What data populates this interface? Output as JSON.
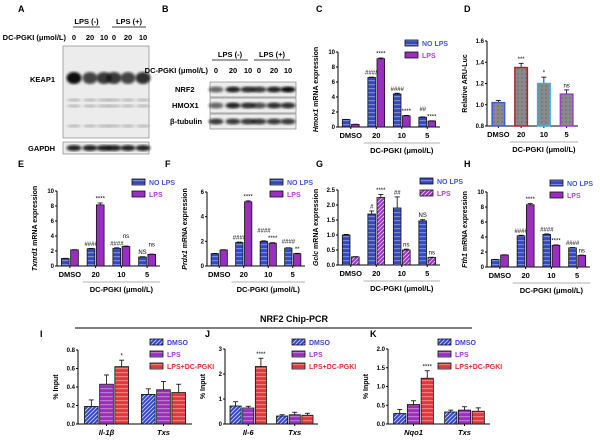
{
  "figure_title": "NRF2 Chip-PCR",
  "blots": [
    {
      "panel": "A",
      "groups": [
        "LPS (-)",
        "LPS (+)"
      ],
      "dose_label": "DC-PGKI (μmol/L)",
      "lanes": [
        "0",
        "20",
        "10",
        "0",
        "20",
        "10"
      ],
      "bands": [
        "KEAP1",
        "GAPDH"
      ]
    },
    {
      "panel": "B",
      "groups": [
        "LPS (-)",
        "LPS (+)"
      ],
      "dose_label": "DC-PGKI (μmol/L)",
      "lanes": [
        "0",
        "20",
        "10",
        "0",
        "20",
        "10"
      ],
      "bands": [
        "NRF2",
        "HMOX1",
        "β-tubulin"
      ]
    }
  ],
  "chart_data": [
    {
      "panel": "C",
      "type": "bar",
      "ylabel_gene": "Hmox1",
      "ylabel_rest": " mRNA expression",
      "ylim": [
        0,
        10
      ],
      "yticks": [
        "0",
        "2",
        "4",
        "6",
        "8",
        "10"
      ],
      "categories": [
        "DMSO",
        "20",
        "10",
        "5"
      ],
      "xlabel": "DC-PGKI (μmol/L)",
      "series": [
        {
          "name": "NO LPS",
          "color": "#3347c8",
          "legend_color": "#4055e0",
          "fill_style": "horizontal-stripes",
          "values": [
            1.0,
            6.6,
            4.4,
            1.3
          ],
          "errors": [
            0.02,
            0.05,
            0.1,
            0.05
          ],
          "annotations": [
            "",
            "####",
            "####",
            "##"
          ]
        },
        {
          "name": "LPS",
          "color": "#9a2fbf",
          "legend_color": "#b23ad4",
          "fill_style": "solid",
          "values": [
            0.35,
            9.1,
            1.5,
            0.8
          ],
          "errors": [
            0.02,
            0.1,
            0.05,
            0.03
          ],
          "annotations": [
            "",
            "****",
            "****",
            "****"
          ]
        }
      ]
    },
    {
      "panel": "D",
      "type": "bar",
      "ylabel_gene": "",
      "ylabel_rest": "Relative ARU-Luc",
      "ylim": [
        0.8,
        1.6
      ],
      "yticks": [
        "0.8",
        "1.0",
        "1.2",
        "1.4",
        "1.6"
      ],
      "categories": [
        "DMSO",
        "20",
        "10",
        "5"
      ],
      "xlabel": "DC-PGKI (μmol/L)",
      "series": [
        {
          "color": "#8a8a8a",
          "edge_colors": [
            "#3a5ae0",
            "#b0222a",
            "#35aee8",
            "#9b3fd0"
          ],
          "fill_style": "dotted-gray",
          "values": [
            1.02,
            1.35,
            1.2,
            1.1
          ],
          "errors": [
            0.02,
            0.04,
            0.06,
            0.04
          ],
          "annotations": [
            "",
            "***",
            "*",
            "ns"
          ]
        }
      ]
    },
    {
      "panel": "E",
      "type": "bar",
      "ylabel_gene": "Txnrd1",
      "ylabel_rest": " mRNA expression",
      "ylim": [
        0,
        10
      ],
      "yticks": [
        "0",
        "2",
        "4",
        "6",
        "8",
        "10"
      ],
      "categories": [
        "DMSO",
        "20",
        "10",
        "5"
      ],
      "xlabel": "DC-PGKI (μmol/L)",
      "series": [
        {
          "name": "NO LPS",
          "color": "#3347c8",
          "legend_color": "#4055e0",
          "fill_style": "horizontal-stripes",
          "values": [
            1.0,
            2.3,
            2.35,
            1.2
          ],
          "errors": [
            0.03,
            0.05,
            0.08,
            0.04
          ],
          "annotations": [
            "",
            "####",
            "####",
            "NS"
          ]
        },
        {
          "name": "LPS",
          "color": "#9a2fbf",
          "legend_color": "#b23ad4",
          "fill_style": "solid",
          "values": [
            2.15,
            8.15,
            2.6,
            1.55
          ],
          "errors": [
            0.03,
            0.25,
            0.06,
            0.04
          ],
          "annotations": [
            "",
            "****",
            "ns",
            "ns"
          ]
        }
      ]
    },
    {
      "panel": "F",
      "type": "bar",
      "ylabel_gene": "Prdx1",
      "ylabel_rest": " mRNA expression",
      "ylim": [
        0,
        6
      ],
      "yticks": [
        "0",
        "2",
        "4",
        "6"
      ],
      "categories": [
        "DMSO",
        "20",
        "10",
        "5"
      ],
      "xlabel": "DC-PGKI (μmol/L)",
      "series": [
        {
          "name": "NO LPS",
          "color": "#3347c8",
          "legend_color": "#4055e0",
          "fill_style": "horizontal-stripes",
          "values": [
            1.0,
            1.9,
            2.0,
            1.45
          ],
          "errors": [
            0.02,
            0.04,
            0.04,
            0.03
          ],
          "annotations": [
            "",
            "####",
            "####",
            "####"
          ]
        },
        {
          "name": "LPS",
          "color": "#9a2fbf",
          "legend_color": "#b23ad4",
          "fill_style": "solid",
          "values": [
            1.3,
            5.2,
            1.85,
            1.0
          ],
          "errors": [
            0.02,
            0.08,
            0.04,
            0.03
          ],
          "annotations": [
            "",
            "****",
            "****",
            "**"
          ]
        }
      ]
    },
    {
      "panel": "G",
      "type": "bar",
      "ylabel_gene": "Gclc",
      "ylabel_rest": " mRNA expression",
      "ylim": [
        0,
        2.5
      ],
      "yticks": [
        "0.0",
        "0.5",
        "1.0",
        "1.5",
        "2.0",
        "2.5"
      ],
      "categories": [
        "DMSO",
        "20",
        "10",
        "5"
      ],
      "xlabel": "DC-PGKI (μmol/L)",
      "series": [
        {
          "name": "NO LPS",
          "color": "#3347c8",
          "legend_color": "#4055e0",
          "fill_style": "horizontal-stripes",
          "values": [
            1.0,
            1.7,
            1.9,
            1.47
          ],
          "errors": [
            0.02,
            0.1,
            0.37,
            0.04
          ],
          "annotations": [
            "",
            "#",
            "##",
            "NS"
          ]
        },
        {
          "name": "LPS",
          "color": "#9a2fbf",
          "legend_color": "#b23ad4",
          "fill_style": "diagonal-hatch",
          "values": [
            0.27,
            2.25,
            0.5,
            0.25
          ],
          "errors": [
            0.01,
            0.1,
            0.03,
            0.01
          ],
          "annotations": [
            "",
            "****",
            "ns",
            "ns"
          ]
        }
      ]
    },
    {
      "panel": "H",
      "type": "bar",
      "ylabel_gene": "Fth1",
      "ylabel_rest": " mRNA expression",
      "ylim": [
        0,
        10
      ],
      "yticks": [
        "0",
        "2",
        "4",
        "6",
        "8",
        "10"
      ],
      "categories": [
        "DMSO",
        "20",
        "10",
        "5"
      ],
      "xlabel": "DC-PGKI (μmol/L)",
      "series": [
        {
          "name": "NO LPS",
          "color": "#3347c8",
          "legend_color": "#4055e0",
          "fill_style": "horizontal-stripes",
          "values": [
            1.0,
            4.15,
            4.35,
            2.55
          ],
          "errors": [
            0.02,
            0.08,
            0.06,
            0.05
          ],
          "annotations": [
            "",
            "####",
            "####",
            "####"
          ]
        },
        {
          "name": "LPS",
          "color": "#9a2fbf",
          "legend_color": "#b23ad4",
          "fill_style": "solid",
          "values": [
            1.6,
            8.3,
            2.9,
            1.55
          ],
          "errors": [
            0.03,
            0.15,
            0.05,
            0.04
          ],
          "annotations": [
            "",
            "****",
            "****",
            "ns"
          ]
        }
      ]
    },
    {
      "panel": "I",
      "type": "bar",
      "ylabel_gene": "",
      "ylabel_rest": "% Input",
      "ylim": [
        0,
        0.8
      ],
      "yticks": [
        "0.0",
        "0.2",
        "0.4",
        "0.6",
        "0.8"
      ],
      "categories": [
        "Il-1β",
        "Txs"
      ],
      "xlabel": "",
      "series": [
        {
          "name": "DMSO",
          "color": "#3347c8",
          "legend_color": "#3a3fd8",
          "fill_style": "diagonal-hatch",
          "values": [
            0.19,
            0.32
          ],
          "errors": [
            0.07,
            0.06
          ],
          "annotations": [
            "",
            ""
          ]
        },
        {
          "name": "LPS",
          "color": "#9a2fbf",
          "legend_color": "#a43ad0",
          "fill_style": "horizontal-stripes",
          "values": [
            0.43,
            0.37
          ],
          "errors": [
            0.1,
            0.09
          ],
          "annotations": [
            "",
            ""
          ]
        },
        {
          "name": "LPS+DC-PGKI",
          "color": "#e5343a",
          "legend_color": "#e82a30",
          "fill_style": "horizontal-stripes",
          "values": [
            0.62,
            0.34
          ],
          "errors": [
            0.07,
            0.09
          ],
          "annotations": [
            "*",
            ""
          ]
        }
      ]
    },
    {
      "panel": "J",
      "type": "bar",
      "ylabel_gene": "",
      "ylabel_rest": "% Input",
      "ylim": [
        0,
        3
      ],
      "yticks": [
        "0",
        "1",
        "2",
        "3"
      ],
      "categories": [
        "Il-6",
        "Txs"
      ],
      "xlabel": "",
      "series": [
        {
          "name": "DMSO",
          "color": "#3347c8",
          "legend_color": "#3a3fd8",
          "fill_style": "diagonal-hatch",
          "values": [
            0.72,
            0.32
          ],
          "errors": [
            0.17,
            0.05
          ],
          "annotations": [
            "",
            ""
          ]
        },
        {
          "name": "LPS",
          "color": "#9a2fbf",
          "legend_color": "#a43ad0",
          "fill_style": "horizontal-stripes",
          "values": [
            0.64,
            0.37
          ],
          "errors": [
            0.07,
            0.1
          ],
          "annotations": [
            "",
            ""
          ]
        },
        {
          "name": "LPS+DC-PGKI",
          "color": "#e5343a",
          "legend_color": "#e82a30",
          "fill_style": "horizontal-stripes",
          "values": [
            2.3,
            0.35
          ],
          "errors": [
            0.33,
            0.08
          ],
          "annotations": [
            "****",
            ""
          ]
        }
      ]
    },
    {
      "panel": "K",
      "type": "bar",
      "ylabel_gene": "",
      "ylabel_rest": "% Input",
      "ylim": [
        0,
        2
      ],
      "yticks": [
        "0.0",
        "0.5",
        "1.0",
        "1.5",
        "2.0"
      ],
      "categories": [
        "Nqo1",
        "Txs"
      ],
      "xlabel": "",
      "series": [
        {
          "name": "DMSO",
          "color": "#3347c8",
          "legend_color": "#3a3fd8",
          "fill_style": "diagonal-hatch",
          "values": [
            0.28,
            0.32
          ],
          "errors": [
            0.11,
            0.05
          ],
          "annotations": [
            "",
            ""
          ]
        },
        {
          "name": "LPS",
          "color": "#9a2fbf",
          "legend_color": "#a43ad0",
          "fill_style": "horizontal-stripes",
          "values": [
            0.52,
            0.37
          ],
          "errors": [
            0.1,
            0.09
          ],
          "annotations": [
            "",
            ""
          ]
        },
        {
          "name": "LPS+DC-PGKI",
          "color": "#e5343a",
          "legend_color": "#e82a30",
          "fill_style": "horizontal-stripes",
          "values": [
            1.22,
            0.34
          ],
          "errors": [
            0.2,
            0.09
          ],
          "annotations": [
            "****",
            ""
          ]
        }
      ]
    }
  ]
}
